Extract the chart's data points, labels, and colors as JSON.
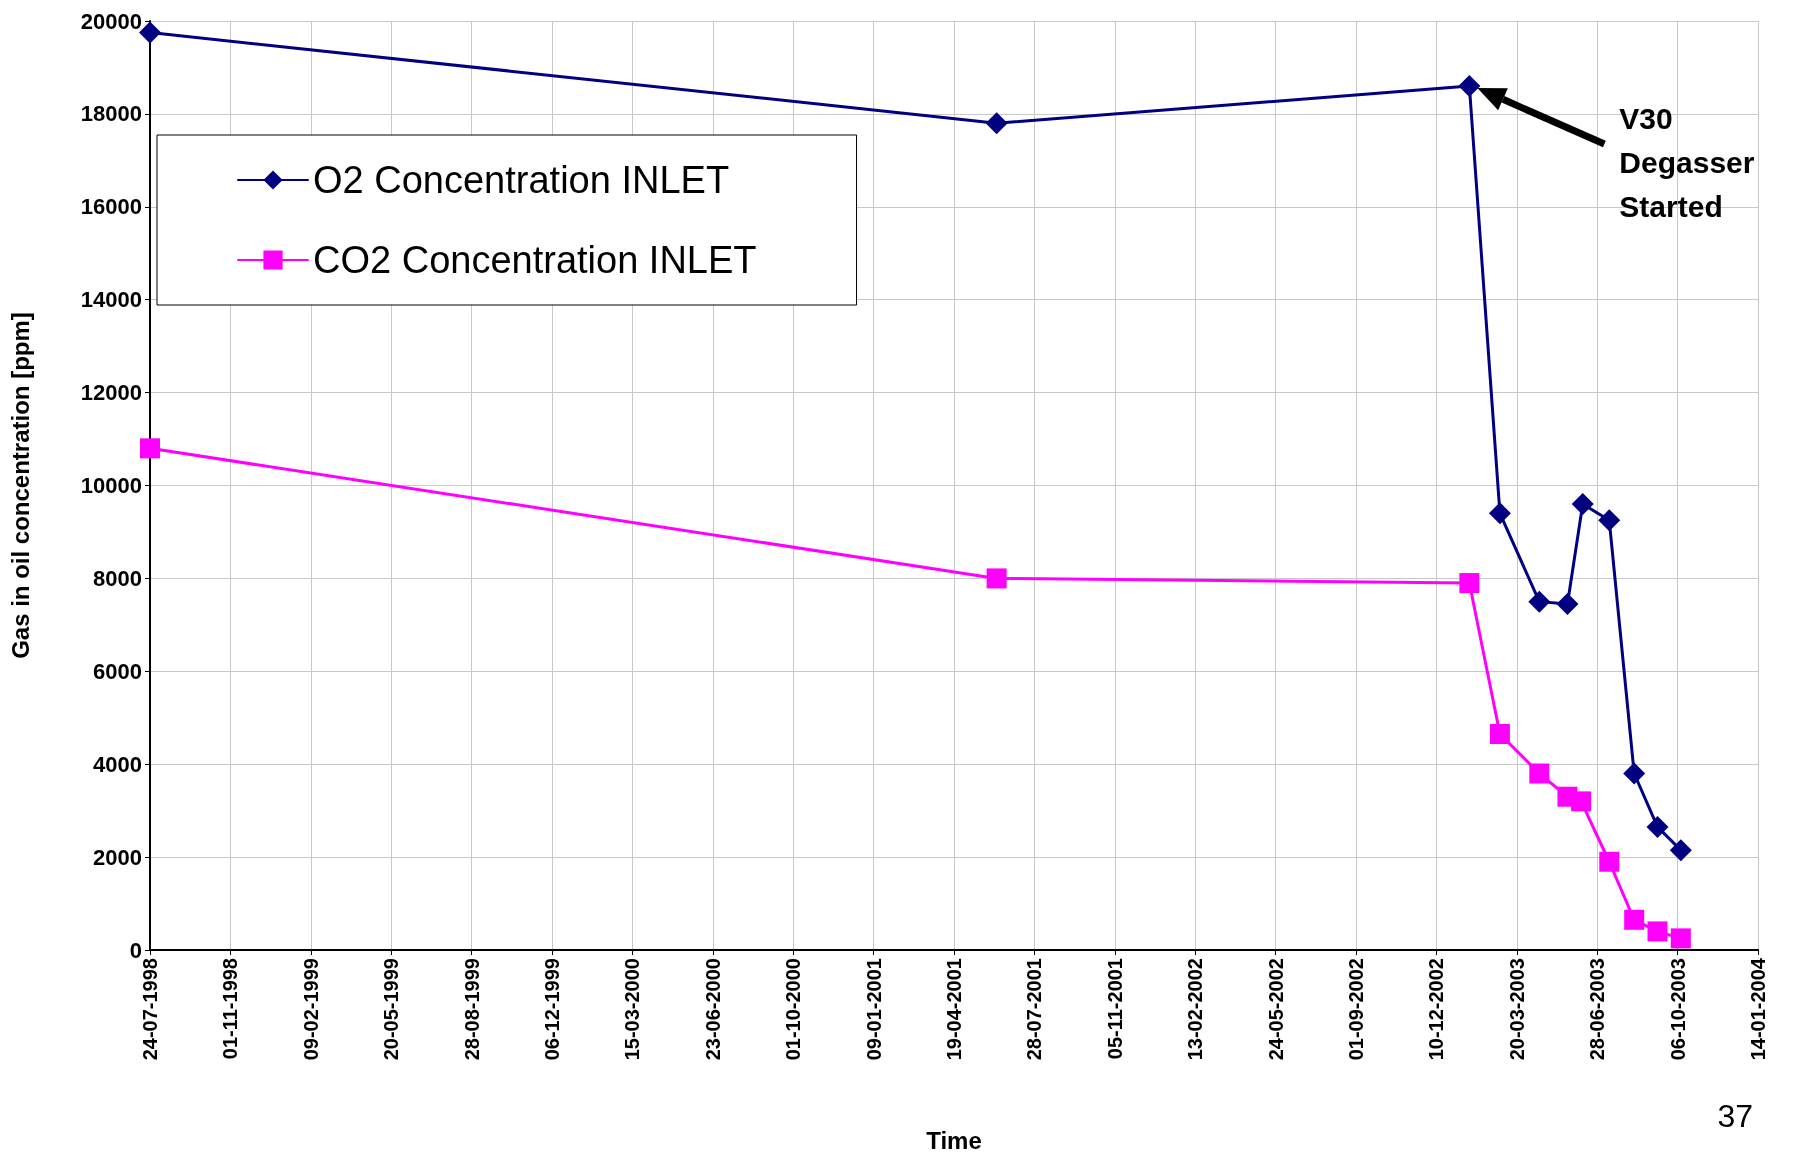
{
  "chart_data": {
    "type": "line",
    "xlabel": "Time",
    "ylabel": "Gas in oil concentration [ppm]",
    "xlim": [
      "1998-07-24",
      "2004-01-14"
    ],
    "xticks": [
      {
        "value": "1998-07-24",
        "label": "24-07-1998"
      },
      {
        "value": "1998-11-01",
        "label": "01-11-1998"
      },
      {
        "value": "1999-02-09",
        "label": "09-02-1999"
      },
      {
        "value": "1999-05-20",
        "label": "20-05-1999"
      },
      {
        "value": "1999-08-28",
        "label": "28-08-1999"
      },
      {
        "value": "1999-12-06",
        "label": "06-12-1999"
      },
      {
        "value": "2000-03-15",
        "label": "15-03-2000"
      },
      {
        "value": "2000-06-23",
        "label": "23-06-2000"
      },
      {
        "value": "2000-10-01",
        "label": "01-10-2000"
      },
      {
        "value": "2001-01-09",
        "label": "09-01-2001"
      },
      {
        "value": "2001-04-19",
        "label": "19-04-2001"
      },
      {
        "value": "2001-07-28",
        "label": "28-07-2001"
      },
      {
        "value": "2001-11-05",
        "label": "05-11-2001"
      },
      {
        "value": "2002-02-13",
        "label": "13-02-2002"
      },
      {
        "value": "2002-05-24",
        "label": "24-05-2002"
      },
      {
        "value": "2002-09-01",
        "label": "01-09-2002"
      },
      {
        "value": "2002-12-10",
        "label": "10-12-2002"
      },
      {
        "value": "2003-03-20",
        "label": "20-03-2003"
      },
      {
        "value": "2003-06-28",
        "label": "28-06-2003"
      },
      {
        "value": "2003-10-06",
        "label": "06-10-2003"
      },
      {
        "value": "2004-01-14",
        "label": "14-01-2004"
      }
    ],
    "ylim": [
      0,
      20000
    ],
    "yticks": [
      0,
      2000,
      4000,
      6000,
      8000,
      10000,
      12000,
      14000,
      16000,
      18000,
      20000
    ],
    "grid": true,
    "legend": "top left",
    "line_style": "solid",
    "series": [
      {
        "name": "O2 Concentration INLET",
        "color": "#000080",
        "marker": "diamond",
        "x": [
          "1998-07-24",
          "2001-06-11",
          "2003-01-20",
          "2003-02-27",
          "2003-04-17",
          "2003-05-22",
          "2003-06-10",
          "2003-07-13",
          "2003-08-13",
          "2003-09-11",
          "2003-10-10"
        ],
        "values": [
          19750,
          17800,
          18600,
          9400,
          7500,
          7450,
          9600,
          9250,
          3800,
          2650,
          2150
        ]
      },
      {
        "name": "CO2 Concentration INLET",
        "color": "#ff00ff",
        "marker": "square",
        "x": [
          "1998-07-24",
          "2001-06-11",
          "2003-01-20",
          "2003-02-27",
          "2003-04-17",
          "2003-05-22",
          "2003-06-08",
          "2003-07-13",
          "2003-08-13",
          "2003-09-11",
          "2003-10-10"
        ],
        "values": [
          10800,
          8000,
          7900,
          4650,
          3800,
          3300,
          3200,
          1900,
          650,
          400,
          250
        ]
      }
    ],
    "annotations": [
      "V30\nDegasser\nStarted",
      "37"
    ]
  }
}
